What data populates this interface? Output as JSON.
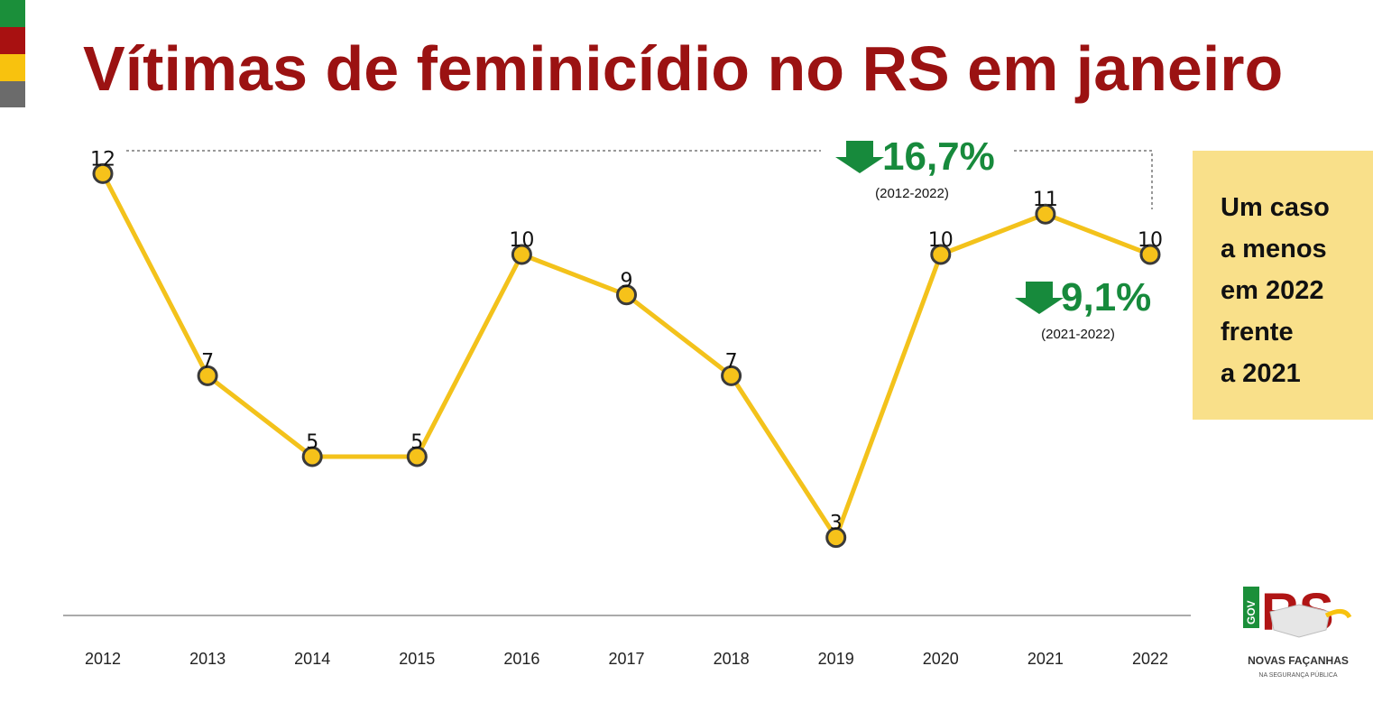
{
  "colors": {
    "title": "#9b1212",
    "line": "#f3c21b",
    "marker_fill": "#f6c21a",
    "marker_stroke": "#3a3a3a",
    "green": "#178a3c",
    "callout_bg": "#f9e08a",
    "stripes": [
      "#1b8f3a",
      "#a81111",
      "#f8c20e",
      "#6b6b6b"
    ]
  },
  "title": "Vítimas de feminicídio no RS em janeiro",
  "chart_data": {
    "type": "line",
    "title": "Vítimas de feminicídio no RS em janeiro",
    "xlabel": "",
    "ylabel": "",
    "x": [
      "2012",
      "2013",
      "2014",
      "2015",
      "2016",
      "2017",
      "2018",
      "2019",
      "2020",
      "2021",
      "2022"
    ],
    "values": [
      12,
      7,
      5,
      5,
      10,
      9,
      7,
      3,
      10,
      11,
      10
    ],
    "ylim": [
      0,
      13
    ],
    "grid": false,
    "legend": "none",
    "annotations": [
      {
        "value": "16,7%",
        "period": "(2012-2022)",
        "direction": "down"
      },
      {
        "value": "9,1%",
        "period": "(2021-2022)",
        "direction": "down"
      }
    ]
  },
  "callout": {
    "lines": [
      "Um caso",
      "a menos",
      "em 2022",
      "frente",
      "a 2021"
    ]
  },
  "logo": {
    "gov": "GOV",
    "rs": "RS",
    "name": "NOVAS FAÇANHAS",
    "tagline": "NA SEGURANÇA PÚBLICA"
  }
}
